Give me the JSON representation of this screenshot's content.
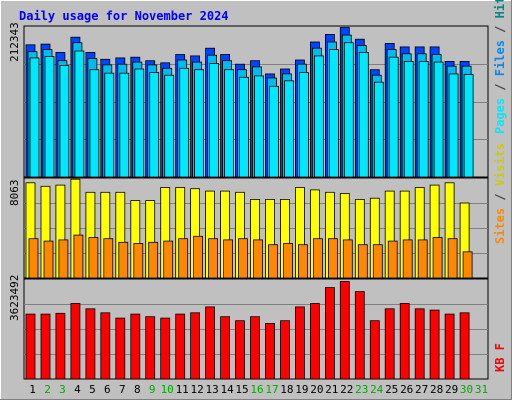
{
  "chart_data": {
    "type": "bar",
    "title": "Daily usage for November 2024",
    "categories": [
      "1",
      "2",
      "3",
      "4",
      "5",
      "6",
      "7",
      "8",
      "9",
      "10",
      "11",
      "12",
      "13",
      "14",
      "15",
      "16",
      "17",
      "18",
      "19",
      "20",
      "21",
      "22",
      "23",
      "24",
      "25",
      "26",
      "27",
      "28",
      "29",
      "30",
      "31"
    ],
    "weekend_days": [
      "2",
      "3",
      "9",
      "10",
      "16",
      "17",
      "23",
      "24",
      "30",
      "31"
    ],
    "panels": [
      {
        "id": "top",
        "max_label": "212343",
        "ymax": 212343,
        "legend": [
          "Pages",
          "Files",
          "Hits"
        ],
        "series": [
          {
            "name": "Hits",
            "color": "#0044ff",
            "values": [
              191000,
              192000,
              180000,
              202000,
              180000,
              170000,
              172000,
              173000,
              168000,
              165000,
              177000,
              175000,
              186000,
              177000,
              163000,
              168000,
              149000,
              156000,
              169000,
              195000,
              206000,
              216000,
              199000,
              155000,
              193000,
              188000,
              188000,
              188000,
              167000,
              167000,
              null
            ]
          },
          {
            "name": "Files",
            "color": "#00bcee",
            "values": [
              181000,
              184000,
              168000,
              194000,
              171000,
              162000,
              163000,
              166000,
              162000,
              157000,
              169000,
              166000,
              176000,
              168000,
              155000,
              159000,
              143000,
              149000,
              163000,
              186000,
              195000,
              205000,
              190000,
              147000,
              184000,
              178000,
              178000,
              177000,
              160000,
              160000,
              null
            ]
          },
          {
            "name": "Pages",
            "color": "#00e8ff",
            "values": [
              172000,
              174000,
              161000,
              182000,
              155000,
              150000,
              150000,
              156000,
              151000,
              147000,
              157000,
              155000,
              164000,
              155000,
              144000,
              146000,
              131000,
              139000,
              151000,
              175000,
              184000,
              194000,
              180000,
              137000,
              173000,
              167000,
              167000,
              166000,
              149000,
              148000,
              null
            ]
          }
        ]
      },
      {
        "id": "middle",
        "max_label": "8063",
        "ymax": 8063,
        "legend": [
          "Sites",
          "Visits"
        ],
        "series": [
          {
            "name": "Visits",
            "color": "#ffff00",
            "values": [
              8000,
              7700,
              7800,
              8300,
              7200,
              7200,
              7200,
              6500,
              6500,
              7600,
              7600,
              7500,
              7300,
              7300,
              7200,
              6600,
              6600,
              6600,
              7600,
              7400,
              7200,
              7100,
              6600,
              6700,
              7300,
              7300,
              7600,
              7800,
              8000,
              6300,
              null
            ]
          },
          {
            "name": "Sites",
            "color": "#ff8800",
            "values": [
              3300,
              3100,
              3200,
              3600,
              3400,
              3300,
              3000,
              2900,
              3000,
              3100,
              3300,
              3500,
              3300,
              3200,
              3300,
              3200,
              2800,
              2900,
              2800,
              3300,
              3300,
              3200,
              2800,
              2800,
              3100,
              3200,
              3200,
              3400,
              3300,
              2200,
              null
            ]
          }
        ]
      },
      {
        "id": "bottom",
        "max_label": "3623492",
        "ymax": 3623492,
        "legend": [
          "KB F"
        ],
        "series": [
          {
            "name": "KB F",
            "color": "#ff0000",
            "values": [
              2450000,
              2450000,
              2480000,
              2850000,
              2650000,
              2500000,
              2300000,
              2450000,
              2350000,
              2300000,
              2450000,
              2500000,
              2720000,
              2350000,
              2200000,
              2350000,
              2100000,
              2200000,
              2720000,
              2850000,
              3450000,
              3680000,
              3300000,
              2200000,
              2650000,
              2850000,
              2650000,
              2600000,
              2450000,
              2500000,
              null
            ]
          }
        ]
      }
    ]
  },
  "colors": {
    "background": "#c0c0c0",
    "title": "#0000ff",
    "weekday_label": "#000000",
    "weekend_label": "#00aa00",
    "pages": "#00e8ff",
    "files": "#0088ff",
    "hits": "#008888",
    "sites": "#ff8800",
    "visits": "#cccc00",
    "kbf": "#ff0000",
    "separator": "#000000"
  }
}
